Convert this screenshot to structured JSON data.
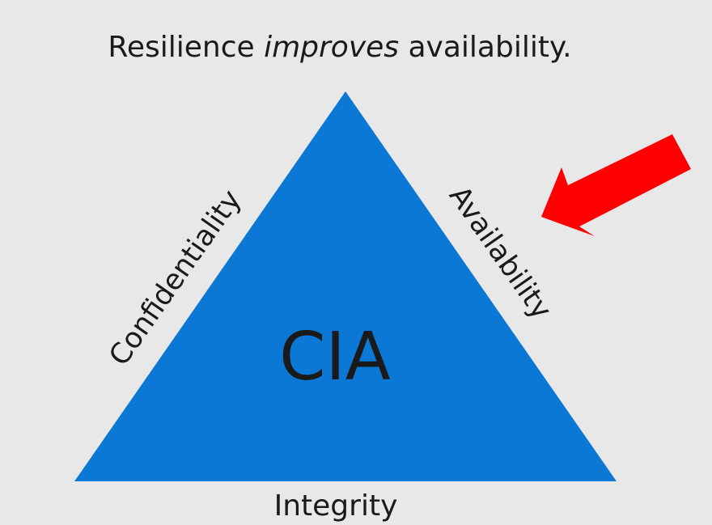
{
  "slide": {
    "title_before": "Resilience ",
    "title_emphasis": "improves",
    "title_after": " availability.",
    "center_label": "CIA",
    "left_side_label": "Confidentiality",
    "right_side_label": "Availability",
    "base_label": "Integrity"
  },
  "colors": {
    "background": "#e8e8e8",
    "triangle_fill": "#0a78d4",
    "arrow_fill": "#ff0000",
    "text": "#1a1a1a"
  },
  "icons": {
    "arrow": "red-arrow-pointing-down-left"
  }
}
